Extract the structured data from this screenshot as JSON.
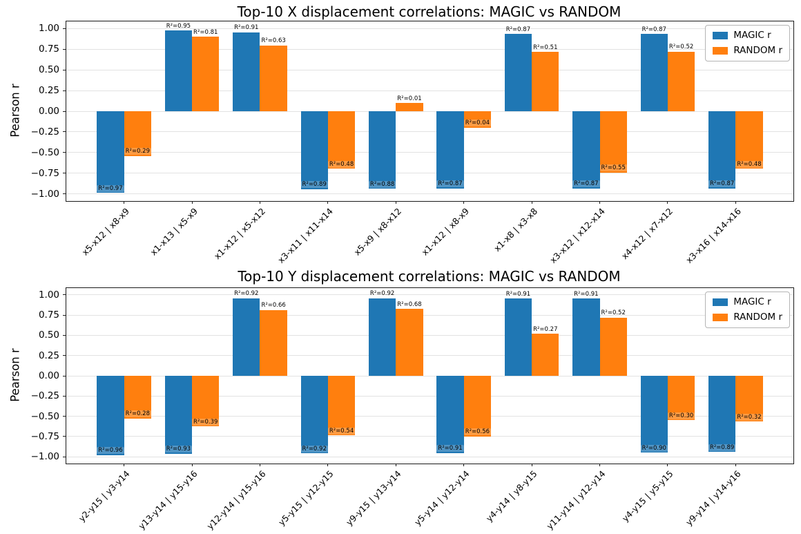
{
  "colors": {
    "magic": "#1f77b4",
    "random": "#ff7f0e",
    "grid": "#e2e2e2",
    "axis": "#1a1a1a",
    "background": "#ffffff"
  },
  "chart_data": [
    {
      "type": "bar",
      "title": "Top-10 X displacement correlations: MAGIC vs RANDOM",
      "xlabel": "",
      "ylabel": "Pearson r",
      "ylim": [
        -1.085,
        1.085
      ],
      "grid": true,
      "legend_position": "upper right",
      "yticks": [
        {
          "v": 1.0,
          "label": "1.00"
        },
        {
          "v": 0.75,
          "label": "0.75"
        },
        {
          "v": 0.5,
          "label": "0.50"
        },
        {
          "v": 0.25,
          "label": "0.25"
        },
        {
          "v": 0.0,
          "label": "0.00"
        },
        {
          "v": -0.25,
          "label": "−0.25"
        },
        {
          "v": -0.5,
          "label": "−0.50"
        },
        {
          "v": -0.75,
          "label": "−0.75"
        },
        {
          "v": -1.0,
          "label": "−1.00"
        }
      ],
      "categories": [
        "x5-x12 | x8-x9",
        "x1-x13 | x5-x9",
        "x1-x12 | x5-x12",
        "x3-x11 | x11-x14",
        "x5-x9 | x8-x12",
        "x1-x12 | x8-x9",
        "x1-x8 | x3-x8",
        "x3-x12 | x12-x14",
        "x4-x12 | x7-x12",
        "x3-x16 | x14-x16"
      ],
      "series": [
        {
          "name": "MAGIC r",
          "color_key": "magic",
          "values": [
            -0.985,
            0.975,
            0.954,
            -0.943,
            -0.938,
            -0.933,
            0.933,
            -0.933,
            0.933,
            -0.933
          ],
          "labels": [
            "R²=0.97",
            "R²=0.95",
            "R²=0.91",
            "R²=0.89",
            "R²=0.88",
            "R²=0.87",
            "R²=0.87",
            "R²=0.87",
            "R²=0.87",
            "R²=0.87"
          ]
        },
        {
          "name": "RANDOM r",
          "color_key": "random",
          "values": [
            -0.539,
            0.9,
            0.794,
            -0.693,
            0.1,
            -0.2,
            0.714,
            -0.742,
            0.721,
            -0.693
          ],
          "labels": [
            "R²=0.29",
            "R²=0.81",
            "R²=0.63",
            "R²=0.48",
            "R²=0.01",
            "R²=0.04",
            "R²=0.51",
            "R²=0.55",
            "R²=0.52",
            "R²=0.48"
          ]
        }
      ]
    },
    {
      "type": "bar",
      "title": "Top-10 Y displacement correlations: MAGIC vs RANDOM",
      "xlabel": "",
      "ylabel": "Pearson r",
      "ylim": [
        -1.085,
        1.085
      ],
      "grid": true,
      "legend_position": "upper right",
      "yticks": [
        {
          "v": 1.0,
          "label": "1.00"
        },
        {
          "v": 0.75,
          "label": "0.75"
        },
        {
          "v": 0.5,
          "label": "0.50"
        },
        {
          "v": 0.25,
          "label": "0.25"
        },
        {
          "v": 0.0,
          "label": "0.00"
        },
        {
          "v": -0.25,
          "label": "−0.25"
        },
        {
          "v": -0.5,
          "label": "−0.50"
        },
        {
          "v": -0.75,
          "label": "−0.75"
        },
        {
          "v": -1.0,
          "label": "−1.00"
        }
      ],
      "categories": [
        "y2-y15 | y3-y14",
        "y13-y14 | y15-y16",
        "y12-y14 | y15-y16",
        "y5-y15 | y12-y15",
        "y9-y15 | y13-y14",
        "y5-y14 | y12-y14",
        "y4-y14 | y8-y15",
        "y11-y14 | y12-y14",
        "y4-y15 | y5-y15",
        "y9-y14 | y14-y16"
      ],
      "series": [
        {
          "name": "MAGIC r",
          "color_key": "magic",
          "values": [
            -0.98,
            -0.964,
            0.959,
            -0.959,
            0.959,
            -0.954,
            0.954,
            0.954,
            -0.949,
            -0.943
          ],
          "labels": [
            "R²=0.96",
            "R²=0.93",
            "R²=0.92",
            "R²=0.92",
            "R²=0.92",
            "R²=0.91",
            "R²=0.91",
            "R²=0.91",
            "R²=0.90",
            "R²=0.89"
          ]
        },
        {
          "name": "RANDOM r",
          "color_key": "random",
          "values": [
            -0.529,
            -0.625,
            0.812,
            -0.735,
            0.825,
            -0.748,
            0.52,
            0.721,
            -0.548,
            -0.566
          ],
          "labels": [
            "R²=0.28",
            "R²=0.39",
            "R²=0.66",
            "R²=0.54",
            "R²=0.68",
            "R²=0.56",
            "R²=0.27",
            "R²=0.52",
            "R²=0.30",
            "R²=0.32"
          ]
        }
      ]
    }
  ]
}
